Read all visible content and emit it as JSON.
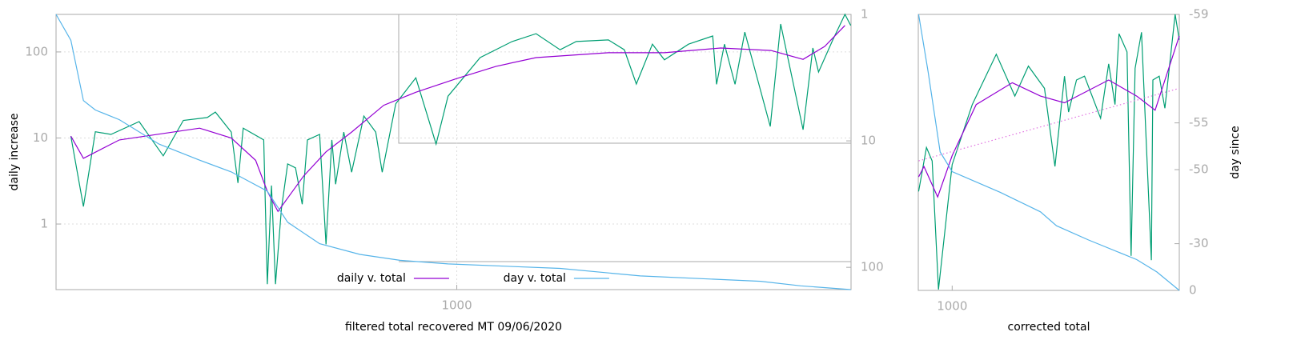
{
  "chart_data": [
    {
      "type": "line",
      "xlabel": "filtered total recovered MT 09/06/2020",
      "ylabel": "daily increase",
      "xlog": true,
      "ylog": true,
      "y2log": true,
      "y2_reversed": true,
      "grid": true,
      "legend": "bottom",
      "xlim": [
        154,
        6300
      ],
      "ylim": [
        0.173,
        273
      ],
      "y2lim": [
        1,
        150
      ],
      "xticks": [
        1000
      ],
      "yticks": [
        1,
        10,
        100
      ],
      "y2ticks": [
        1,
        10,
        100
      ],
      "series": [
        {
          "color": "#009e73",
          "axis": "y",
          "x": [
            165,
            175,
            185,
            199,
            227,
            254,
            279,
            312,
            324,
            349,
            360,
            369,
            406,
            413,
            421,
            429,
            441,
            454,
            471,
            486,
            498,
            527,
            543,
            558,
            568,
            590,
            612,
            648,
            685,
            706,
            752,
            826,
            908,
            960,
            1115,
            1295,
            1448,
            1620,
            1747,
            2029,
            2186,
            2312,
            2492,
            2636,
            2950,
            3302,
            3363,
            3489,
            3665,
            3836,
            4320,
            4536,
            5036,
            5272,
            5413,
            5786,
            6124,
            6290
          ],
          "values": [
            10.5,
            1.6,
            11.8,
            11,
            15.5,
            6.2,
            16,
            17.3,
            20,
            11.7,
            3.0,
            13,
            9.5,
            0.2,
            2.8,
            0.2,
            1.5,
            5,
            4.5,
            1.7,
            9.5,
            11,
            0.58,
            9.5,
            2.9,
            11.7,
            4,
            18,
            11.7,
            4,
            25,
            50,
            8.5,
            30.6,
            86,
            132,
            163,
            106,
            132,
            138,
            106,
            42.4,
            123,
            81,
            123,
            153,
            42,
            123,
            42,
            170,
            13.6,
            211,
            12.5,
            111,
            58.5,
            138,
            273,
            203
          ]
        },
        {
          "name": "daily v. total",
          "color": "#9400d3",
          "axis": "y",
          "x": [
            165,
            175,
            207,
            301,
            349,
            391,
            413,
            434,
            489,
            543,
            612,
            711,
            826,
            1000,
            1201,
            1448,
            2029,
            2636,
            3427,
            4336,
            5036,
            5572,
            6124
          ],
          "values": [
            10.5,
            5.8,
            9.5,
            13,
            10,
            5.5,
            2.4,
            1.4,
            3.6,
            6.9,
            11.7,
            24,
            34,
            49,
            68,
            86,
            98,
            98,
            111,
            104,
            82,
            116,
            203
          ]
        },
        {
          "name": "day v. total",
          "color": "#56b4e9",
          "axis": "y2",
          "x": [
            154,
            165,
            175,
            185,
            207,
            249,
            301,
            349,
            413,
            454,
            527,
            636,
            767,
            960,
            1620,
            2355,
            4130,
            4982,
            6290
          ],
          "values": [
            1,
            1.6,
            4.8,
            5.7,
            6.8,
            10.6,
            14.2,
            17.6,
            25,
            44,
            65,
            79,
            88,
            94,
            102,
            117,
            129,
            140,
            150
          ]
        }
      ]
    },
    {
      "type": "line",
      "xlabel": "corrected total",
      "y2label": "day since",
      "xlog": true,
      "ylog": true,
      "y2log": true,
      "y2_reversed": true,
      "grid": false,
      "xlim": [
        760,
        6300
      ],
      "ylim": [
        0.87,
        27.5
      ],
      "y2lim": [
        1,
        60
      ],
      "xticks": [
        1000
      ],
      "y2ticks": [
        {
          "value": 1,
          "label": "-59"
        },
        {
          "value": 5,
          "label": "-55"
        },
        {
          "value": 10,
          "label": "-50"
        },
        {
          "value": 30,
          "label": "-30"
        },
        {
          "value": 60,
          "label": "0"
        }
      ],
      "series": [
        {
          "color": "#009e73",
          "axis": "y",
          "x": [
            762,
            812,
            850,
            895,
            1000,
            1177,
            1430,
            1662,
            1855,
            2113,
            2300,
            2485,
            2569,
            2738,
            2923,
            3329,
            3555,
            3742,
            3865,
            4125,
            4262,
            4404,
            4638,
            5022,
            5087,
            5354,
            5604,
            6090,
            6300
          ],
          "values": [
            3.0,
            5.2,
            4.4,
            0.88,
            4.2,
            8.9,
            16.7,
            9.9,
            14.4,
            10.9,
            4.1,
            12.7,
            8.1,
            12.1,
            12.7,
            7.5,
            14.8,
            8.9,
            21.6,
            17.2,
            1.34,
            14,
            22,
            1.27,
            12.1,
            12.7,
            8.5,
            27.5,
            20
          ]
        },
        {
          "color": "#9400d3",
          "axis": "y",
          "x": [
            762,
            796,
            889,
            1000,
            1215,
            1628,
            2045,
            2485,
            3555,
            4460,
            5180,
            6300
          ],
          "values": [
            3.6,
            4.1,
            2.8,
            4.7,
            8.9,
            11.7,
            9.9,
            9.1,
            12.1,
            9.9,
            8.3,
            21
          ]
        },
        {
          "color": "#e070e0",
          "axis": "y",
          "dash": "dotted",
          "x": [
            762,
            6300
          ],
          "values": [
            4.4,
            10.9
          ]
        },
        {
          "color": "#56b4e9",
          "axis": "y2",
          "x": [
            762,
            823,
            907,
            1000,
            1477,
            2045,
            2329,
            3020,
            4460,
            5250,
            6300
          ],
          "values": [
            1,
            2.35,
            7.7,
            10.3,
            14,
            18.7,
            23,
            28.4,
            38,
            45.6,
            60
          ]
        }
      ]
    }
  ]
}
